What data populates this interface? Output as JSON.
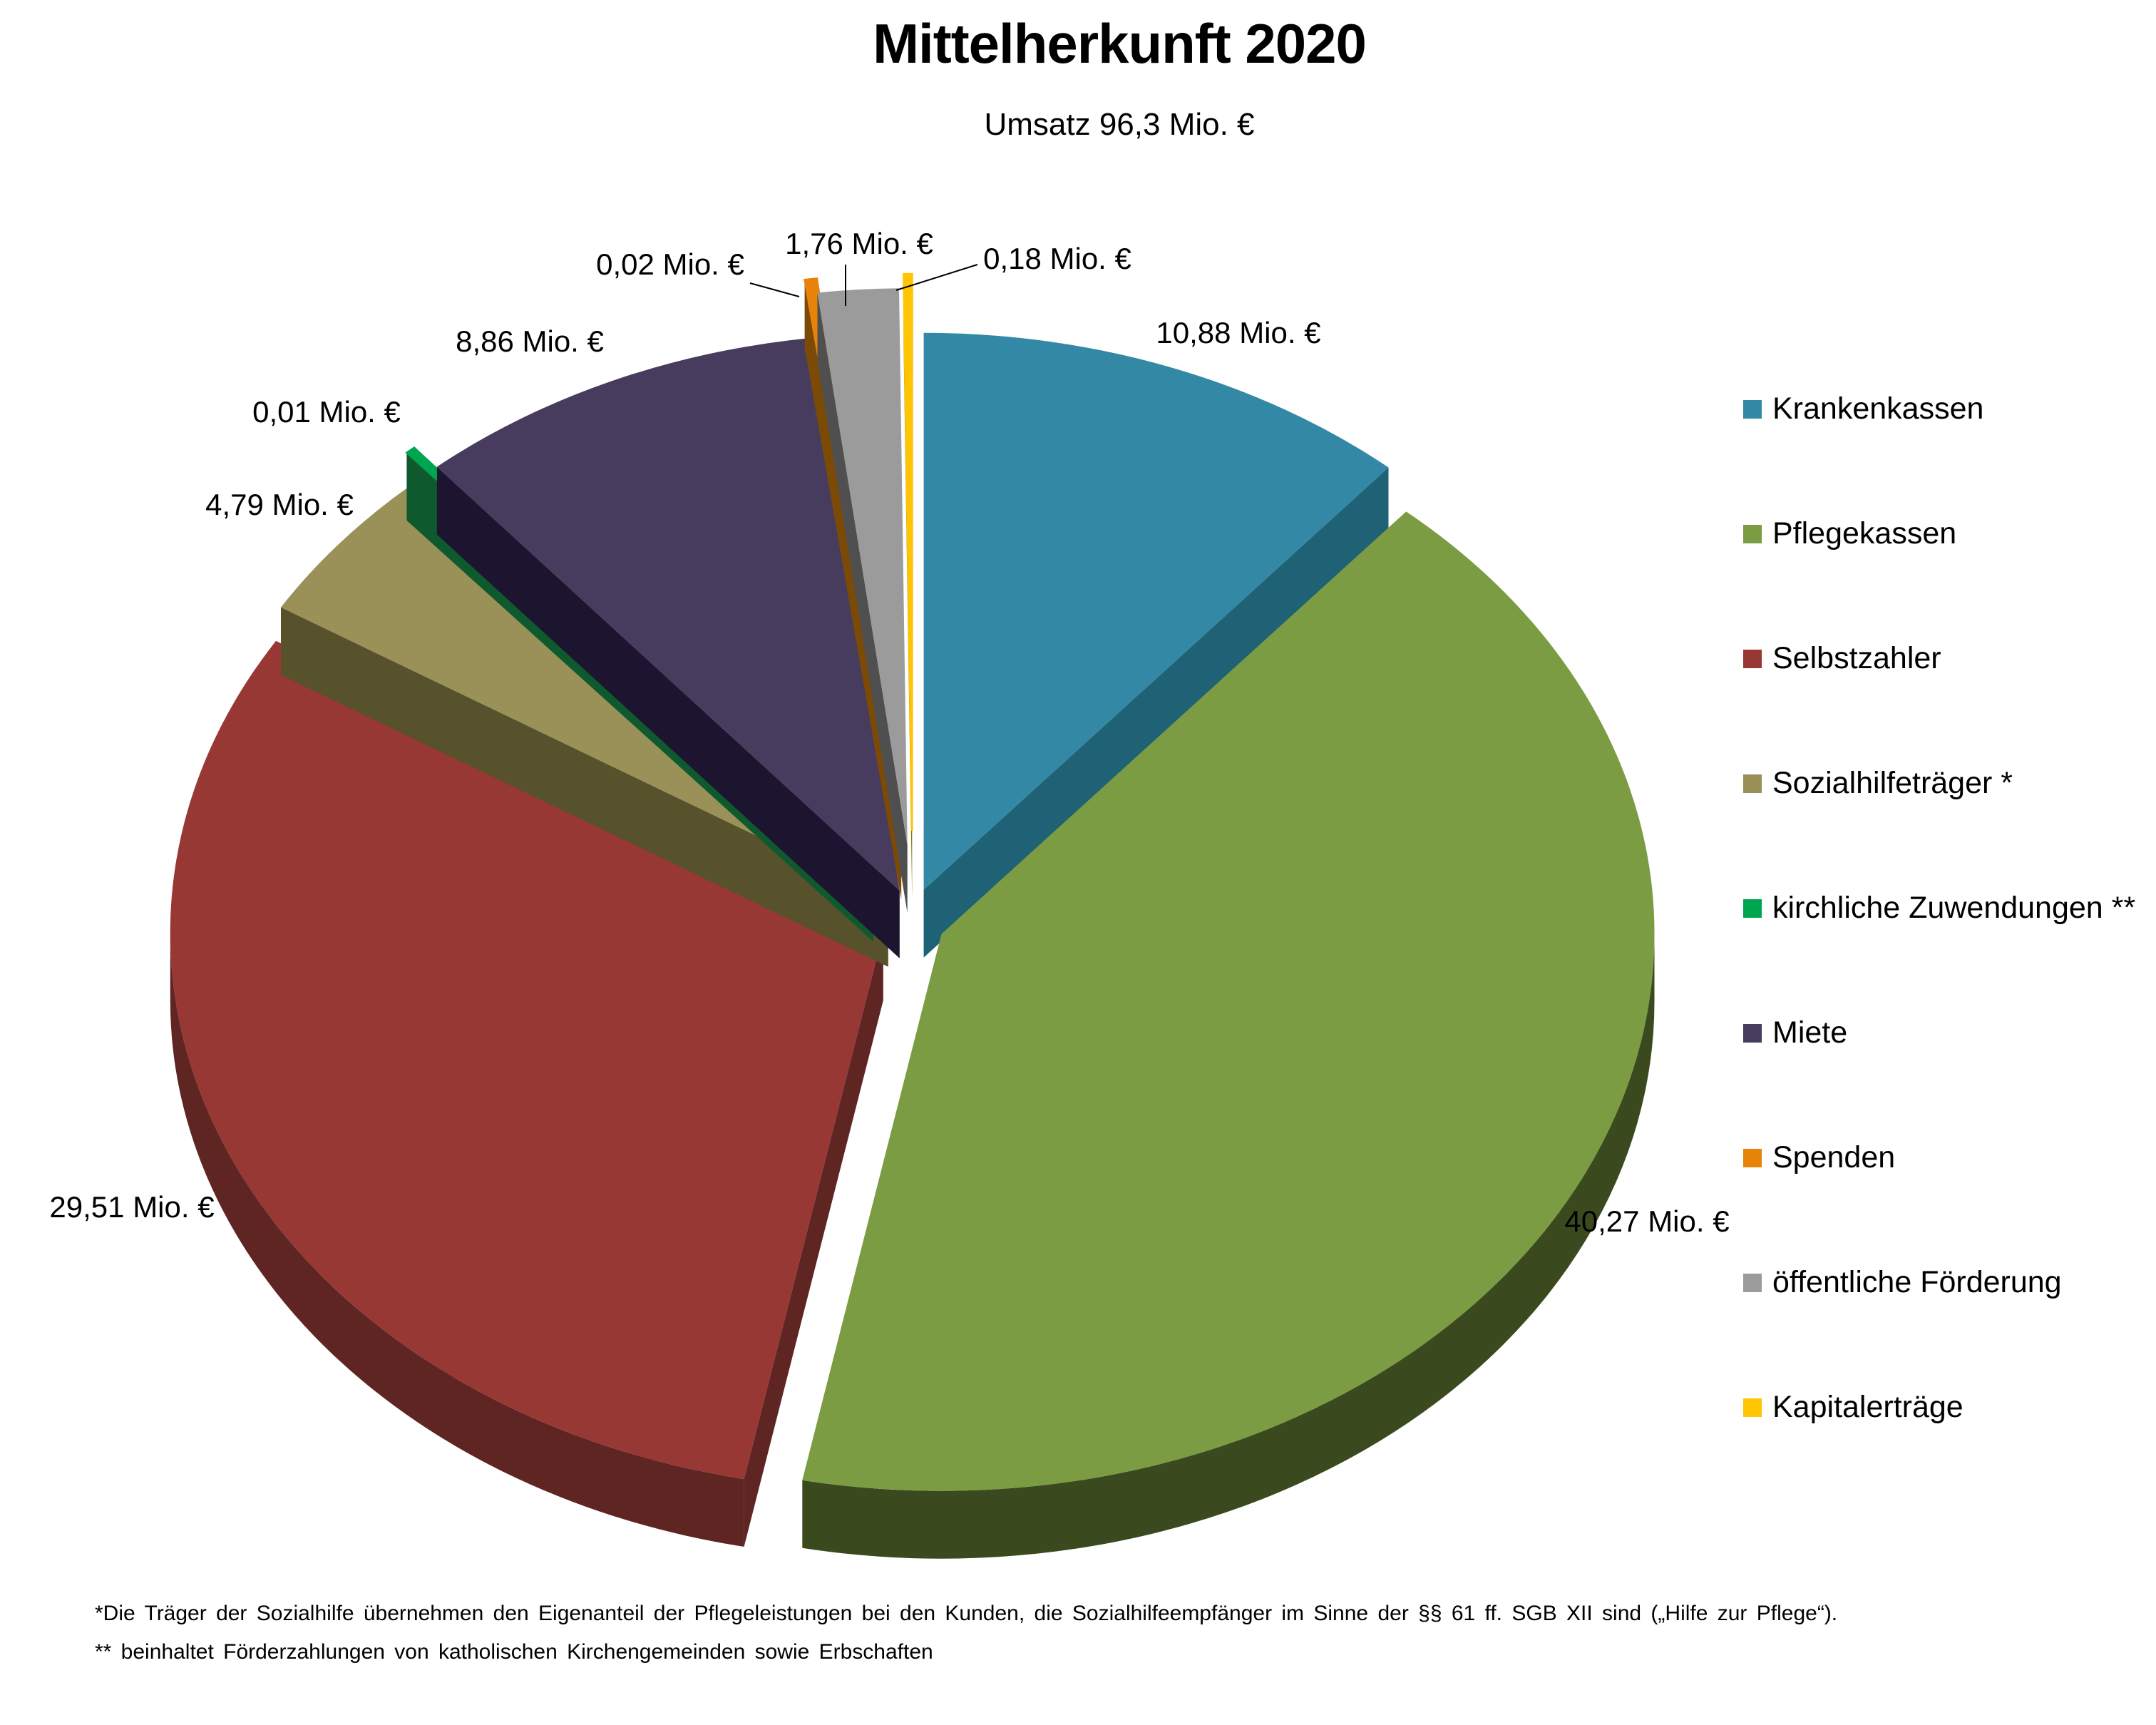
{
  "title": "Mittelherkunft 2020",
  "subtitle": "Umsatz 96,3 Mio. €",
  "chart_data": {
    "type": "pie",
    "style": "3d-exploded",
    "title": "Mittelherkunft 2020",
    "subtitle": "Umsatz 96,3 Mio. €",
    "unit": "Mio. €",
    "total_label": "Umsatz 96,3 Mio. €",
    "total": 96.3,
    "legend_position": "right",
    "start_angle_deg": 0,
    "clockwise": true,
    "series": [
      {
        "label": "Krankenkassen",
        "value": 10.88,
        "value_label": "10,88 Mio. €",
        "color": "#3389A5",
        "side_color": "#1F6175"
      },
      {
        "label": "Pflegekassen",
        "value": 40.27,
        "value_label": "40,27 Mio. €",
        "color": "#7B9C42",
        "side_color": "#3B4A1E"
      },
      {
        "label": "Selbstzahler",
        "value": 29.51,
        "value_label": "29,51 Mio. €",
        "color": "#973835",
        "side_color": "#5F2523"
      },
      {
        "label": "Sozialhilfeträger *",
        "value": 4.79,
        "value_label": "4,79 Mio. €",
        "color": "#9A9158",
        "side_color": "#57512C"
      },
      {
        "label": "kirchliche Zuwendungen **",
        "value": 0.01,
        "value_label": "0,01 Mio. €",
        "color": "#00A64F",
        "side_color": "#0E5A2E"
      },
      {
        "label": "Miete",
        "value": 8.86,
        "value_label": "8,86 Mio. €",
        "color": "#473B5E",
        "side_color": "#1D1530"
      },
      {
        "label": "Spenden",
        "value": 0.02,
        "value_label": "0,02 Mio. €",
        "color": "#E8830A",
        "side_color": "#7B4A06"
      },
      {
        "label": "öffentliche Förderung",
        "value": 1.76,
        "value_label": "1,76 Mio. €",
        "color": "#9B9B9B",
        "side_color": "#4F4F4F"
      },
      {
        "label": "Kapitalerträge",
        "value": 0.18,
        "value_label": "0,18 Mio. €",
        "color": "#FFC404",
        "side_color": "#8F7000"
      }
    ]
  },
  "footnotes": [
    "*Die Träger der Sozialhilfe übernehmen den Eigenanteil der Pflegeleistungen bei den Kunden, die Sozialhilfeempfänger im Sinne der §§ 61 ff. SGB XII sind („Hilfe zur Pflege“).",
    "** beinhaltet Förderzahlungen von katholischen Kirchengemeinden sowie Erbschaften"
  ]
}
